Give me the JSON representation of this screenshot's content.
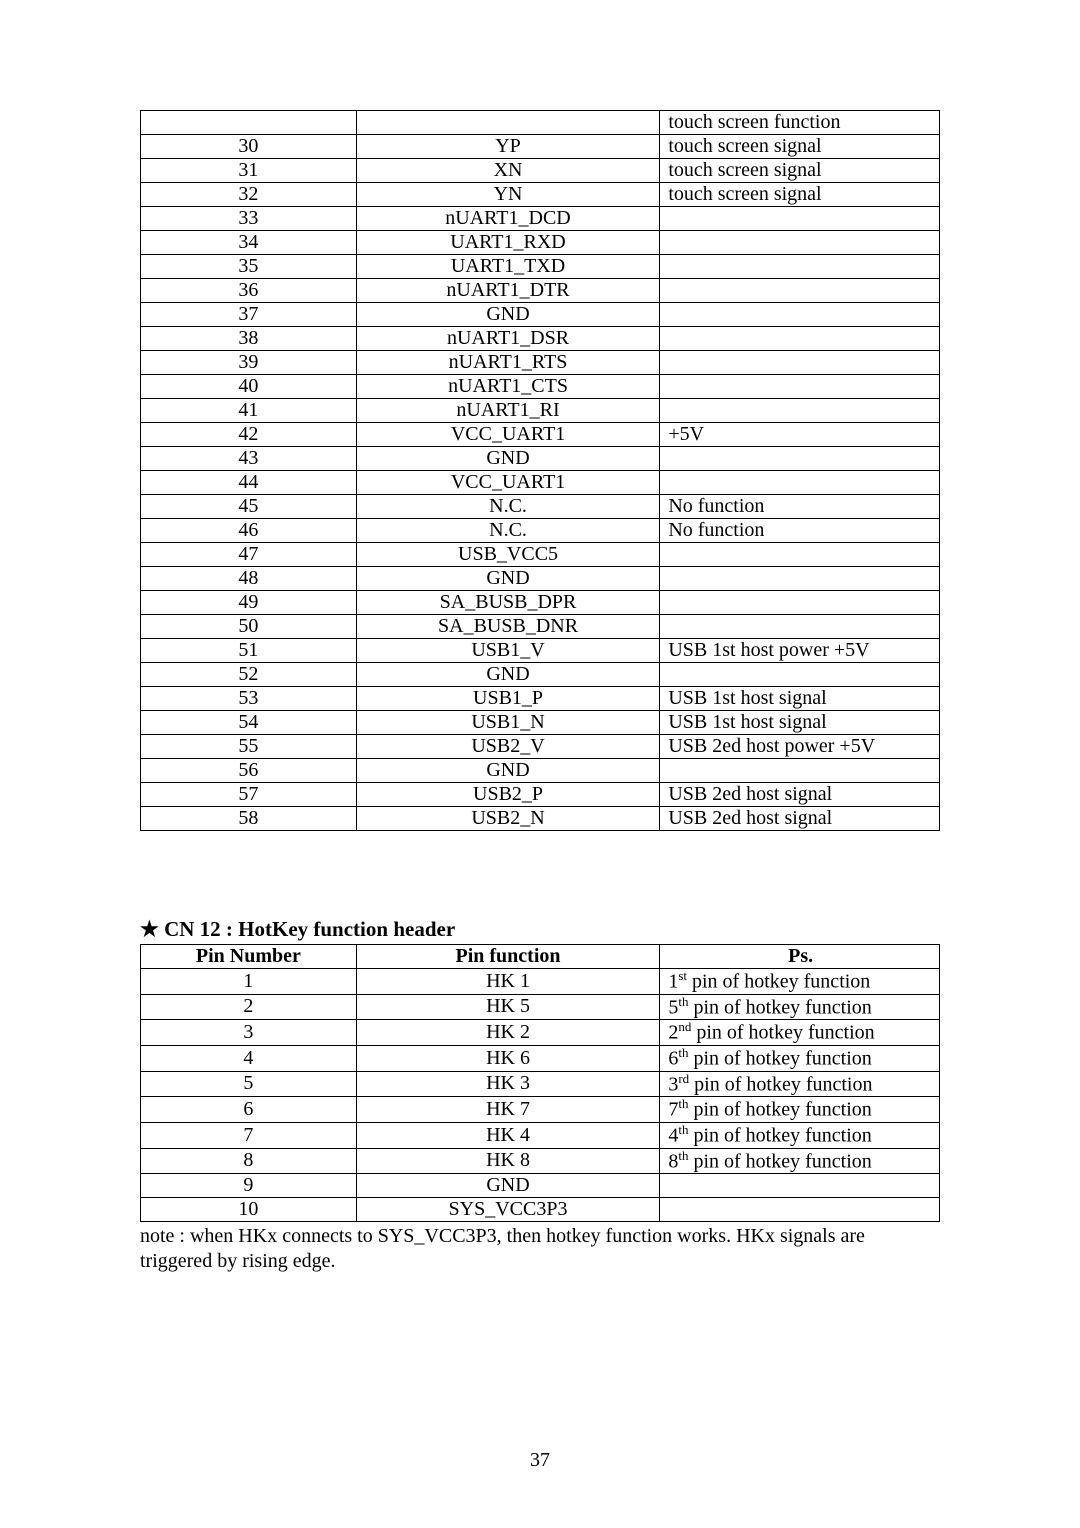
{
  "table1": {
    "rows": [
      [
        " ",
        " ",
        "touch screen function"
      ],
      [
        "30",
        "YP",
        "touch screen signal"
      ],
      [
        "31",
        "XN",
        "touch screen signal"
      ],
      [
        "32",
        "YN",
        "touch screen signal"
      ],
      [
        "33",
        "nUART1_DCD",
        " "
      ],
      [
        "34",
        "UART1_RXD",
        " "
      ],
      [
        "35",
        "UART1_TXD",
        " "
      ],
      [
        "36",
        "nUART1_DTR",
        " "
      ],
      [
        "37",
        "GND",
        " "
      ],
      [
        "38",
        "nUART1_DSR",
        " "
      ],
      [
        "39",
        "nUART1_RTS",
        " "
      ],
      [
        "40",
        "nUART1_CTS",
        " "
      ],
      [
        "41",
        "nUART1_RI",
        " "
      ],
      [
        "42",
        "VCC_UART1",
        "+5V"
      ],
      [
        "43",
        "GND",
        " "
      ],
      [
        "44",
        "VCC_UART1",
        " "
      ],
      [
        "45",
        "N.C.",
        "No function"
      ],
      [
        "46",
        "N.C.",
        "No function"
      ],
      [
        "47",
        "USB_VCC5",
        " "
      ],
      [
        "48",
        "GND",
        " "
      ],
      [
        "49",
        "SA_BUSB_DPR",
        " "
      ],
      [
        "50",
        "SA_BUSB_DNR",
        " "
      ],
      [
        "51",
        "USB1_V",
        "USB 1st host power +5V"
      ],
      [
        "52",
        "GND",
        " "
      ],
      [
        "53",
        "USB1_P",
        "USB 1st host signal"
      ],
      [
        "54",
        "USB1_N",
        "USB 1st host signal"
      ],
      [
        "55",
        "USB2_V",
        "USB 2ed host power +5V"
      ],
      [
        "56",
        "GND",
        " "
      ],
      [
        "57",
        "USB2_P",
        "USB 2ed host signal"
      ],
      [
        "58",
        "USB2_N",
        "USB 2ed host signal"
      ]
    ]
  },
  "heading": "★ CN 12 : HotKey function header",
  "table2": {
    "header": [
      "Pin Number",
      "Pin function",
      "Ps."
    ],
    "rows": [
      [
        "1",
        "HK 1",
        {
          "n": "1",
          "sup": "st",
          "tail": " pin of hotkey function"
        }
      ],
      [
        "2",
        "HK 5",
        {
          "n": "5",
          "sup": "th",
          "tail": " pin of hotkey function"
        }
      ],
      [
        "3",
        "HK 2",
        {
          "n": "2",
          "sup": "nd",
          "tail": " pin of hotkey function"
        }
      ],
      [
        "4",
        "HK 6",
        {
          "n": "6",
          "sup": "th",
          "tail": " pin of hotkey function"
        }
      ],
      [
        "5",
        "HK 3",
        {
          "n": "3",
          "sup": "rd",
          "tail": " pin of hotkey function"
        }
      ],
      [
        "6",
        "HK 7",
        {
          "n": "7",
          "sup": "th",
          "tail": " pin of hotkey function"
        }
      ],
      [
        "7",
        "HK 4",
        {
          "n": "4",
          "sup": "th",
          "tail": " pin of hotkey function"
        }
      ],
      [
        "8",
        "HK 8",
        {
          "n": "8",
          "sup": "th",
          "tail": " pin of hotkey function"
        }
      ],
      [
        "9",
        "GND",
        null
      ],
      [
        "10",
        "SYS_VCC3P3",
        null
      ]
    ]
  },
  "note": "note : when HKx connects to SYS_VCC3P3, then hotkey function works. HKx signals are triggered by rising edge.",
  "page_number": "37"
}
